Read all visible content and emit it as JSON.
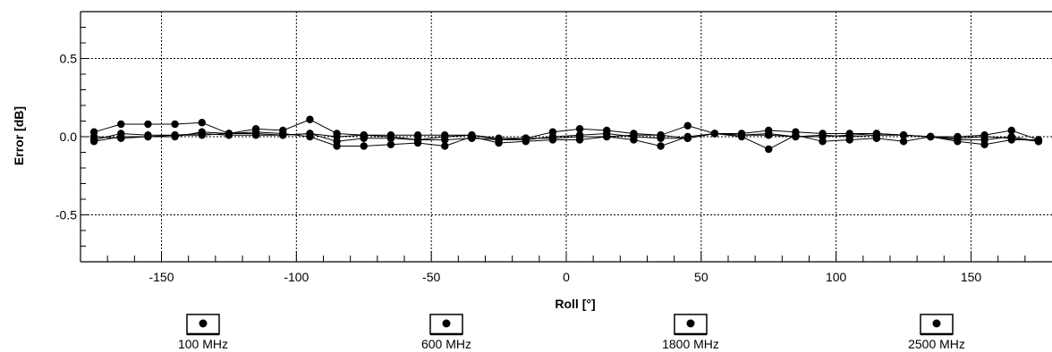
{
  "chart_data": {
    "type": "line",
    "xlabel": "Roll [°]",
    "ylabel": "Error [dB]",
    "xlim": [
      -180,
      180
    ],
    "ylim": [
      -0.8,
      0.8
    ],
    "x_ticks": [
      -150,
      -100,
      -50,
      0,
      50,
      100,
      150
    ],
    "x_tick_labels": [
      "-150",
      "-100",
      "-50",
      "0",
      "50",
      "100",
      "150"
    ],
    "y_ticks": [
      0.5,
      0.0,
      -0.5
    ],
    "y_tick_labels": [
      "0.5",
      "0.0",
      "-0.5"
    ],
    "grid": true,
    "legend_position": "bottom",
    "x": [
      -175,
      -165,
      -155,
      -145,
      -135,
      -125,
      -115,
      -105,
      -95,
      -85,
      -75,
      -65,
      -55,
      -45,
      -35,
      -25,
      -15,
      -5,
      5,
      15,
      25,
      35,
      45,
      55,
      65,
      75,
      85,
      95,
      105,
      115,
      125,
      135,
      145,
      155,
      165,
      175
    ],
    "series": [
      {
        "name": "100 MHz",
        "values": [
          0.03,
          0.08,
          0.08,
          0.08,
          0.09,
          0.02,
          0.05,
          0.04,
          0.11,
          0.02,
          0.01,
          0.01,
          0.01,
          0.01,
          0.01,
          -0.01,
          -0.01,
          0.03,
          0.05,
          0.04,
          0.02,
          0.01,
          0.07,
          0.02,
          0.02,
          0.04,
          0.03,
          0.02,
          0.02,
          0.02,
          0.01,
          0.0,
          0.0,
          0.01,
          0.04,
          -0.02
        ]
      },
      {
        "name": "600 MHz",
        "values": [
          -0.02,
          0.02,
          0.01,
          0.01,
          0.01,
          0.02,
          0.02,
          0.01,
          0.02,
          -0.03,
          -0.01,
          -0.01,
          -0.02,
          -0.02,
          -0.01,
          -0.02,
          -0.02,
          0.0,
          0.01,
          0.02,
          0.0,
          -0.01,
          -0.01,
          0.02,
          0.01,
          0.01,
          0.0,
          0.01,
          0.0,
          0.01,
          0.01,
          0.0,
          -0.02,
          -0.02,
          0.0,
          -0.03
        ]
      },
      {
        "name": "1800 MHz",
        "values": [
          -0.03,
          0.0,
          0.0,
          0.0,
          0.03,
          0.02,
          0.03,
          0.02,
          0.0,
          -0.06,
          -0.06,
          -0.05,
          -0.04,
          -0.06,
          0.0,
          -0.04,
          -0.03,
          -0.02,
          -0.02,
          0.0,
          -0.02,
          -0.06,
          0.0,
          0.02,
          0.0,
          -0.08,
          0.01,
          -0.03,
          -0.02,
          -0.01,
          -0.03,
          0.0,
          -0.03,
          -0.05,
          -0.02,
          -0.02
        ]
      },
      {
        "name": "2500 MHz",
        "values": [
          0.0,
          -0.01,
          0.0,
          0.01,
          0.02,
          0.01,
          0.01,
          0.01,
          0.02,
          0.0,
          0.01,
          0.0,
          -0.02,
          0.0,
          0.01,
          -0.02,
          -0.01,
          -0.01,
          0.0,
          0.0,
          0.01,
          0.01,
          -0.01,
          0.02,
          0.01,
          0.02,
          0.0,
          0.0,
          0.01,
          0.02,
          0.01,
          0.0,
          -0.01,
          0.0,
          -0.01,
          -0.03
        ]
      }
    ]
  },
  "colors": {
    "line": "#000000",
    "grid": "#000000",
    "background": "#ffffff"
  }
}
